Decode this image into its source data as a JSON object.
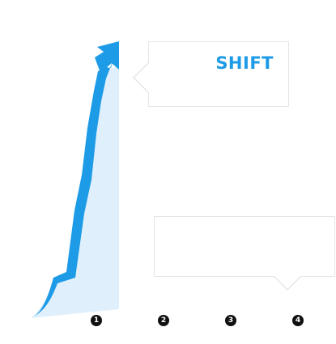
{
  "brand": {
    "logo_text": "SHIFT"
  },
  "steps": [
    {
      "label": "1"
    },
    {
      "label": "2"
    },
    {
      "label": "3"
    },
    {
      "label": "4"
    }
  ],
  "colors": {
    "accent": "#1e9be6",
    "area_fill": "#dff0fc",
    "callout_border": "#e2e6ea"
  },
  "icons": {
    "growth": "arrow-up-icon"
  }
}
